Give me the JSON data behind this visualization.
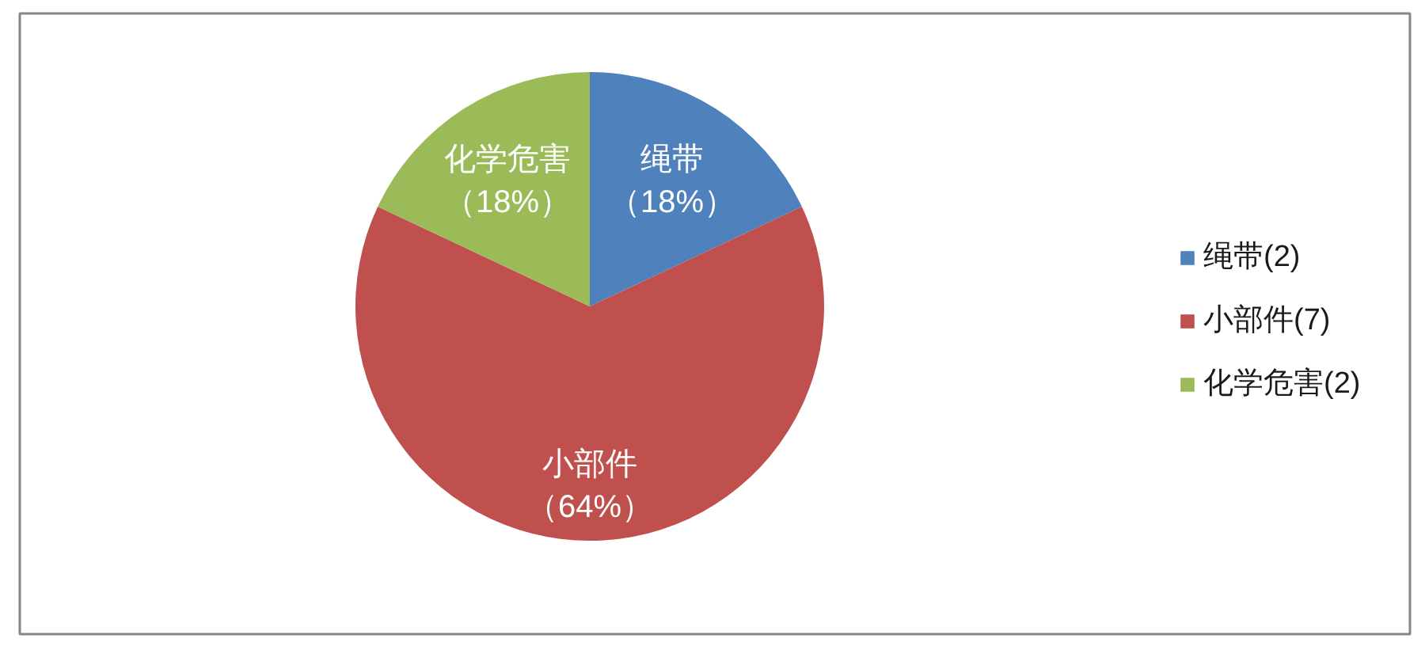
{
  "chart_data": {
    "type": "pie",
    "categories": [
      "绳带(2)",
      "小部件(7)",
      "化学危害(2)"
    ],
    "values": [
      18,
      64,
      18
    ],
    "colors": [
      "#4f81bd",
      "#c0504d",
      "#9bbb59"
    ],
    "value_labels": [
      "绳带（18%）",
      "小部件（64%）",
      "化学危害（18%）"
    ],
    "legend": "right"
  }
}
